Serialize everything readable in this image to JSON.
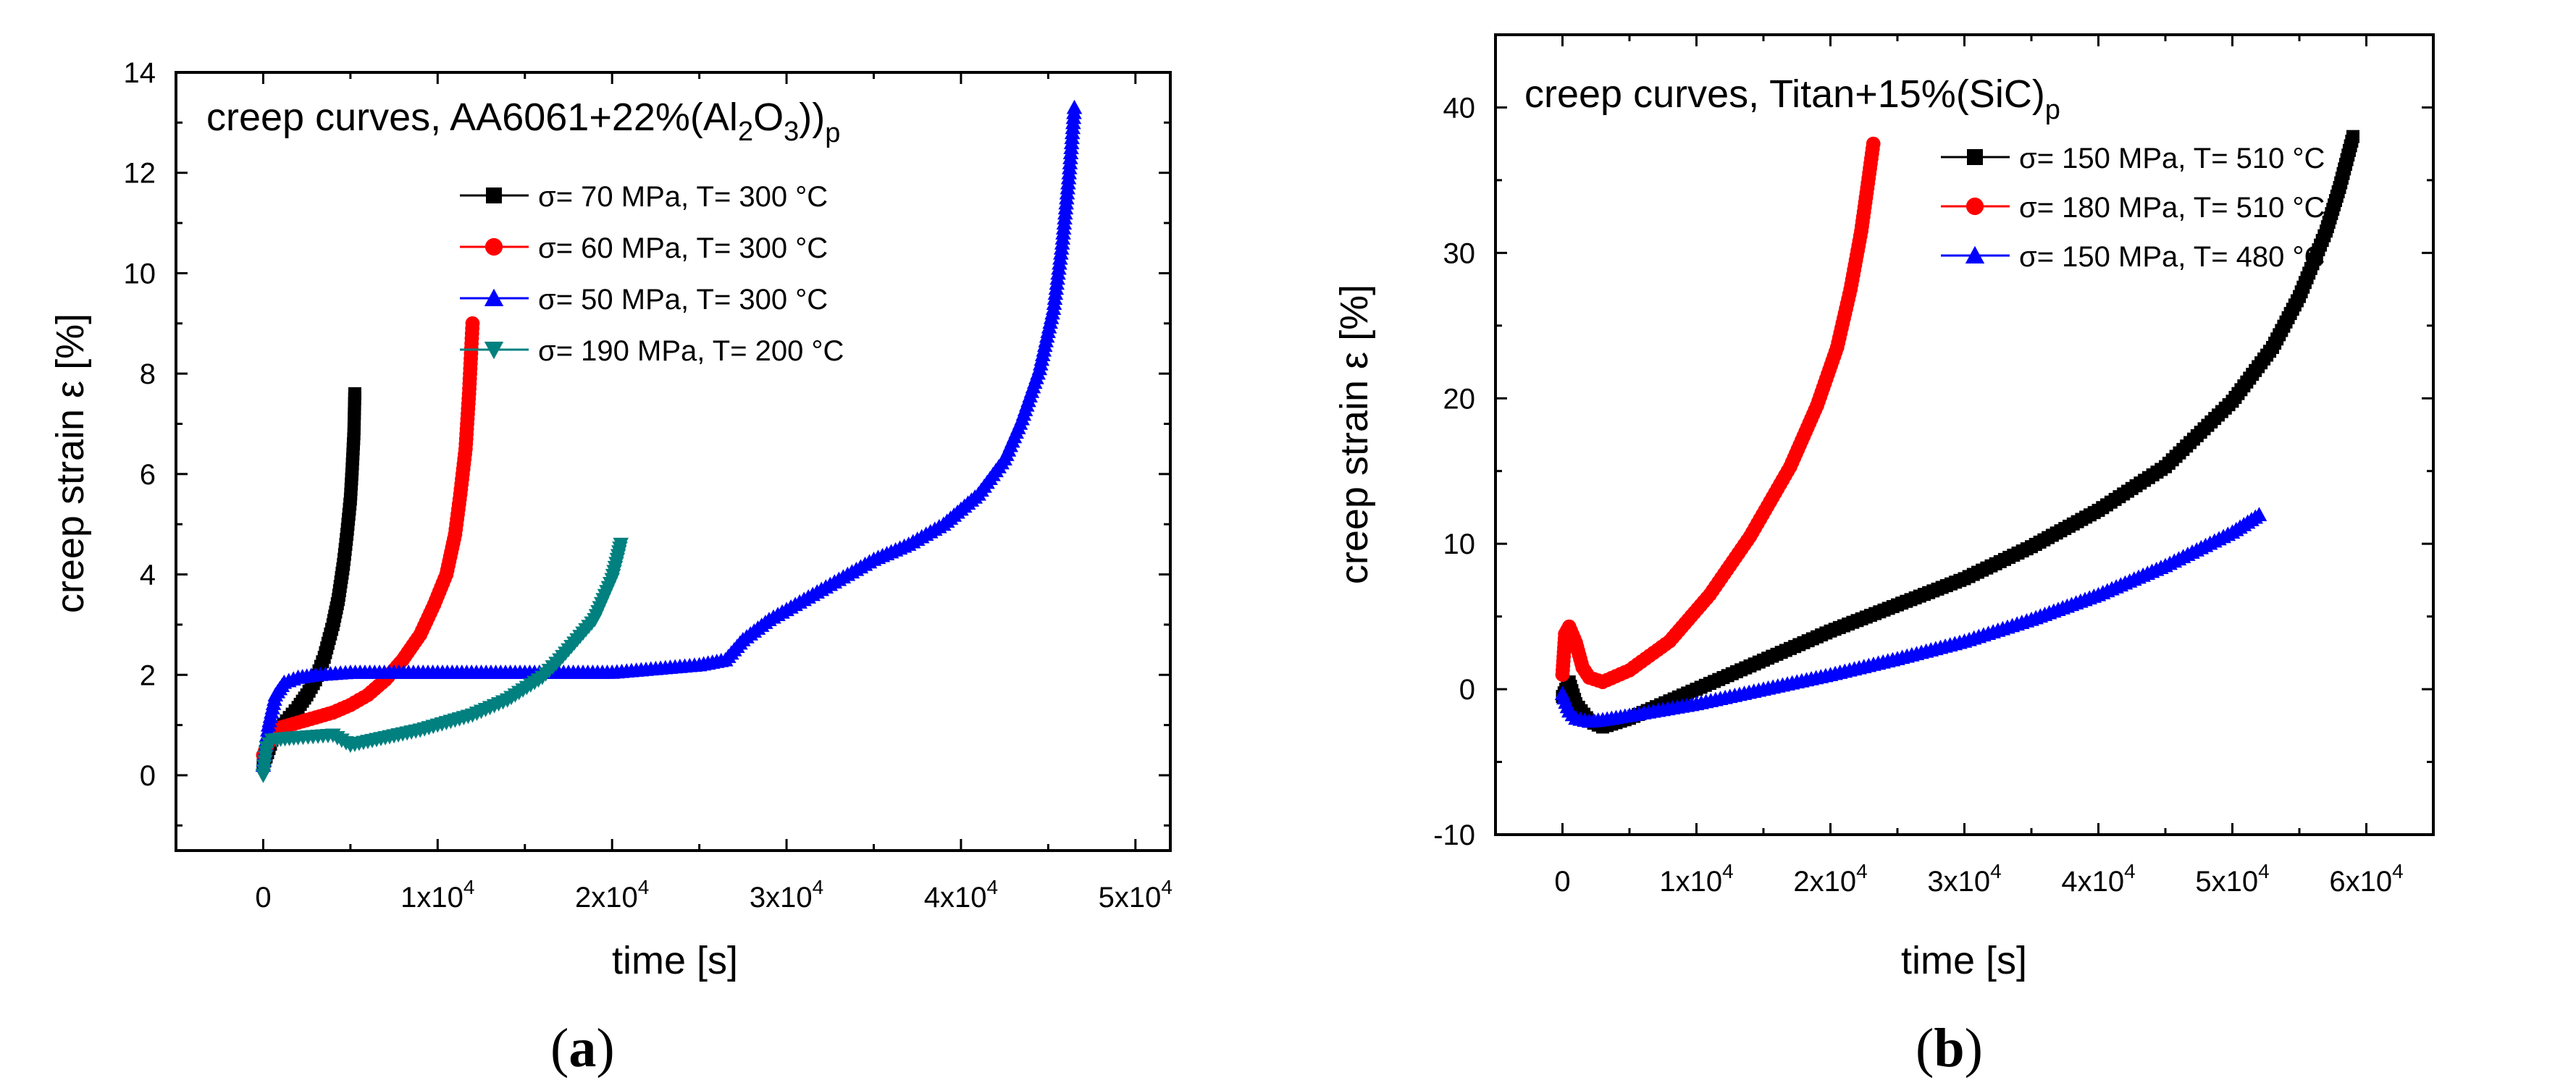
{
  "panels": [
    {
      "label_open": "(",
      "label_letter": "a",
      "label_close": ")"
    },
    {
      "label_open": "(",
      "label_letter": "b",
      "label_close": ")"
    }
  ],
  "chart_data": [
    {
      "type": "scatter",
      "title_main": "creep curves, AA6061+22%(Al",
      "title_sub1": "2",
      "title_mid": "O",
      "title_sub2": "3",
      "title_end": "))",
      "title_sub3": "p",
      "xlabel": "time [s]",
      "ylabel": "creep strain ε [%]",
      "xlim": [
        -5000,
        52000
      ],
      "ylim": [
        -1.5,
        14
      ],
      "xticks": [
        0,
        10000,
        20000,
        30000,
        40000,
        50000
      ],
      "xtick_labels": [
        {
          "mant": "0",
          "exp": ""
        },
        {
          "mant": "1x10",
          "exp": "4"
        },
        {
          "mant": "2x10",
          "exp": "4"
        },
        {
          "mant": "3x10",
          "exp": "4"
        },
        {
          "mant": "4x10",
          "exp": "4"
        },
        {
          "mant": "5x10",
          "exp": "4"
        }
      ],
      "yticks": [
        0,
        2,
        4,
        6,
        8,
        10,
        12,
        14
      ],
      "ytick_labels": [
        "0",
        "2",
        "4",
        "6",
        "8",
        "10",
        "12",
        "14"
      ],
      "legend_position": "top-right",
      "series": [
        {
          "name": "σ= 70 MPa, T= 300 °C",
          "color": "#000000",
          "marker": "square",
          "x": [
            0,
            500,
            1000,
            1500,
            2000,
            2500,
            3000,
            3500,
            4000,
            4300,
            4600,
            4800,
            5000,
            5100,
            5200,
            5250
          ],
          "y": [
            0.2,
            0.7,
            0.95,
            1.15,
            1.35,
            1.6,
            1.9,
            2.35,
            3.0,
            3.5,
            4.2,
            4.8,
            5.5,
            6.1,
            6.8,
            7.6
          ]
        },
        {
          "name": "σ= 60 MPa, T= 300 °C",
          "color": "#ff0000",
          "marker": "circle",
          "x": [
            0,
            500,
            1000,
            2000,
            3000,
            4000,
            5000,
            6000,
            7000,
            8000,
            9000,
            9800,
            10500,
            11000,
            11300,
            11600,
            11800,
            12000
          ],
          "y": [
            0.4,
            0.8,
            0.95,
            1.05,
            1.15,
            1.25,
            1.4,
            1.6,
            1.9,
            2.3,
            2.8,
            3.4,
            4.0,
            4.8,
            5.6,
            6.5,
            7.6,
            9.0
          ]
        },
        {
          "name": "σ= 50 MPa, T= 300 °C",
          "color": "#0000ff",
          "marker": "triangle-up",
          "x": [
            0,
            300,
            700,
            1200,
            2000,
            3000,
            5000,
            10000,
            15000,
            20000,
            25000,
            26500,
            27500,
            29000,
            31000,
            33000,
            35000,
            37000,
            39000,
            41000,
            42500,
            43500,
            44500,
            45300,
            45800,
            46200,
            46500
          ],
          "y": [
            0.2,
            1.0,
            1.6,
            1.85,
            1.95,
            2.0,
            2.05,
            2.05,
            2.05,
            2.05,
            2.2,
            2.3,
            2.7,
            3.1,
            3.5,
            3.9,
            4.3,
            4.6,
            5.0,
            5.6,
            6.3,
            7.1,
            8.1,
            9.3,
            10.6,
            12.0,
            13.3
          ]
        },
        {
          "name": "σ= 190 MPa, T= 200 °C",
          "color": "#00807f",
          "marker": "triangle-down",
          "x": [
            0,
            200,
            500,
            1000,
            2000,
            4000,
            5000,
            7000,
            9000,
            10000,
            12000,
            14000,
            16000,
            17000,
            18000,
            19000,
            19500,
            20000,
            20300,
            20500
          ],
          "y": [
            0.0,
            0.55,
            0.7,
            0.72,
            0.75,
            0.8,
            0.6,
            0.75,
            0.9,
            1.0,
            1.2,
            1.5,
            1.95,
            2.3,
            2.7,
            3.1,
            3.5,
            3.9,
            4.3,
            4.6
          ]
        }
      ]
    },
    {
      "type": "scatter",
      "title_main": "creep curves, Titan+15%(SiC)",
      "title_sub": "p",
      "xlabel": "time [s]",
      "ylabel": "creep strain ε [%]",
      "xlim": [
        -5000,
        65000
      ],
      "ylim": [
        -10,
        45
      ],
      "xticks": [
        0,
        10000,
        20000,
        30000,
        40000,
        50000,
        60000
      ],
      "xtick_labels": [
        {
          "mant": "0",
          "exp": ""
        },
        {
          "mant": "1x10",
          "exp": "4"
        },
        {
          "mant": "2x10",
          "exp": "4"
        },
        {
          "mant": "3x10",
          "exp": "4"
        },
        {
          "mant": "4x10",
          "exp": "4"
        },
        {
          "mant": "5x10",
          "exp": "4"
        },
        {
          "mant": "6x10",
          "exp": "4"
        }
      ],
      "yticks": [
        -10,
        0,
        10,
        20,
        30,
        40
      ],
      "ytick_labels": [
        "-10",
        "0",
        "10",
        "20",
        "30",
        "40"
      ],
      "legend_position": "top-right",
      "series": [
        {
          "name": "σ= 150 MPa, T= 510 °C",
          "color": "#000000",
          "marker": "square",
          "x": [
            0,
            500,
            1000,
            2000,
            3000,
            5000,
            10000,
            15000,
            20000,
            25000,
            30000,
            35000,
            40000,
            45000,
            50000,
            53000,
            55000,
            57000,
            58000,
            59000
          ],
          "y": [
            -0.5,
            0.5,
            -1.0,
            -2.2,
            -2.6,
            -2.0,
            0.0,
            2.0,
            4.0,
            5.8,
            7.6,
            9.8,
            12.3,
            15.3,
            19.8,
            23.5,
            27.0,
            31.5,
            34.5,
            38.0
          ]
        },
        {
          "name": "σ= 180 MPa, T= 510 °C",
          "color": "#ff0000",
          "marker": "circle",
          "x": [
            0,
            200,
            500,
            1000,
            1500,
            2000,
            3000,
            5000,
            8000,
            11000,
            14000,
            17000,
            19000,
            20500,
            21500,
            22300,
            22800,
            23200
          ],
          "y": [
            1.0,
            3.8,
            4.3,
            3.2,
            1.5,
            0.8,
            0.5,
            1.3,
            3.3,
            6.5,
            10.5,
            15.3,
            19.5,
            23.5,
            27.5,
            31.5,
            34.8,
            37.5
          ]
        },
        {
          "name": "σ= 150 MPa, T= 480 °C",
          "color": "#0000ff",
          "marker": "triangle-up",
          "x": [
            0,
            500,
            1000,
            2000,
            3000,
            5000,
            10000,
            15000,
            20000,
            25000,
            30000,
            35000,
            40000,
            45000,
            50000,
            52000
          ],
          "y": [
            -0.3,
            -1.5,
            -2.0,
            -2.2,
            -2.1,
            -1.8,
            -1.0,
            0.0,
            1.0,
            2.1,
            3.3,
            4.8,
            6.5,
            8.5,
            10.8,
            12.0
          ]
        }
      ]
    }
  ]
}
